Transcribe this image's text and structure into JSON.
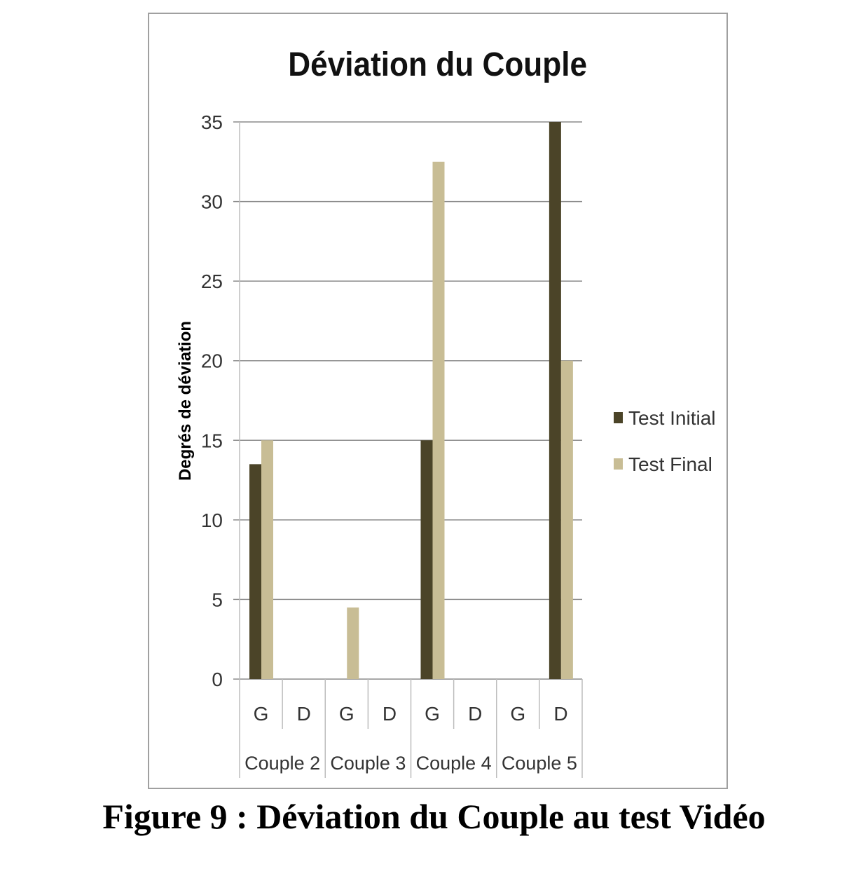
{
  "chart_data": {
    "type": "bar",
    "title": "Déviation du Couple",
    "ylabel": "Degrés de déviation",
    "xlabel": "",
    "ylim": [
      0,
      35
    ],
    "yticks": [
      0,
      5,
      10,
      15,
      20,
      25,
      30,
      35
    ],
    "grid": true,
    "legend_position": "right",
    "groups": [
      "Couple 2",
      "Couple 3",
      "Couple 4",
      "Couple 5"
    ],
    "categories": [
      "G",
      "D",
      "G",
      "D",
      "G",
      "D",
      "G",
      "D"
    ],
    "series": [
      {
        "name": "Test Initial",
        "color": "#4b4428",
        "values": [
          13.5,
          0,
          0,
          0,
          15,
          0,
          0,
          35
        ]
      },
      {
        "name": "Test Final",
        "color": "#c8bd95",
        "values": [
          15,
          0,
          4.5,
          0,
          32.5,
          0,
          0,
          20
        ]
      }
    ]
  },
  "caption": "Figure 9 : Déviation du Couple au test Vidéo"
}
